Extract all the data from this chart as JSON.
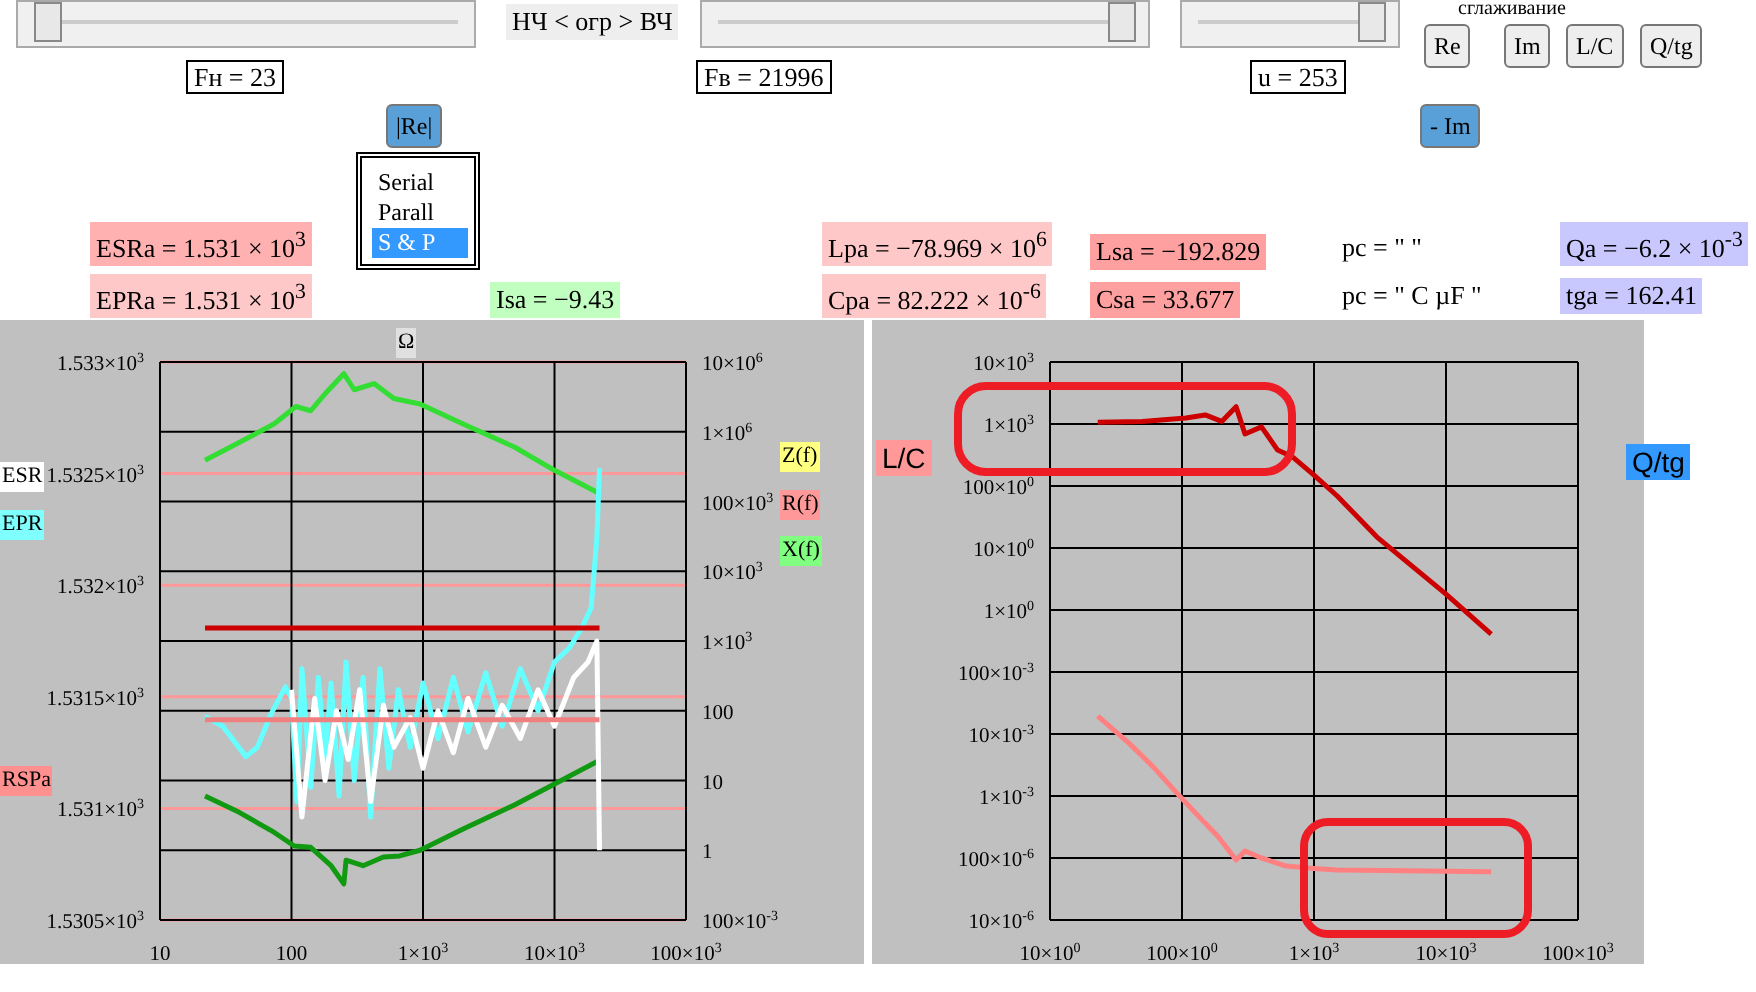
{
  "chart_data": [
    {
      "type": "line",
      "xlim": [
        10,
        100000
      ],
      "xticks": [
        10,
        100,
        {
          "value": 1000,
          "label": "1×10$^{3}$"
        },
        {
          "value": 10000,
          "label": "10×10$^{3}$"
        },
        {
          "value": 100000,
          "label": "100×10$^{3}$"
        }
      ],
      "y2lim": [
        1530.5,
        1533
      ],
      "y2ticks": [
        {
          "value": 1530.5,
          "label": "1.5305×10$^{3}$"
        },
        {
          "value": 1531,
          "label": "1.531×10$^{3}$"
        },
        {
          "value": 1531.5,
          "label": "1.5315×10$^{3}$"
        },
        {
          "value": 1532,
          "label": "1.532×10$^{3}$"
        },
        {
          "value": 1532.5,
          "label": "1.5325×10$^{3}$"
        },
        {
          "value": 1533,
          "label": "1.533×10$^{3}$"
        }
      ],
      "ylim": [
        0.1,
        10000000
      ],
      "yticks": [
        {
          "value": 0.1,
          "label": "100×10$^{-3}$"
        },
        1,
        10,
        100,
        {
          "value": 1000,
          "label": "1×10$^{3}$"
        },
        {
          "value": 10000,
          "label": "10×10$^{3}$"
        },
        {
          "value": 100000,
          "label": "100×10$^{3}$"
        },
        {
          "value": 1000000,
          "label": "1×10$^{6}$"
        },
        {
          "value": 10000000,
          "label": "10×10$^{6}$"
        }
      ],
      "log": "xy",
      "grid": true,
      "legend": false,
      "annotations": [
        "Ω",
        "ESR",
        "EPR",
        "RSPa",
        "Z(f)",
        "R(f)",
        "X(f)"
      ],
      "series": [
        {
          "color": "#33dd33",
          "x": [
            22,
            40,
            74,
            108,
            140,
            180,
            250,
            300,
            425,
            600,
            950,
            2000,
            5000,
            10000,
            21996
          ],
          "values": [
            390000,
            700000,
            1300000,
            2300000,
            2000000,
            3500000,
            6800000,
            4000000,
            4900000,
            3000000,
            2500000,
            1300000,
            600000,
            280000,
            130000
          ]
        },
        {
          "color": "#119911",
          "x": [
            22,
            40,
            74,
            105,
            140,
            200,
            250,
            260,
            350,
            500,
            665,
            950,
            2000,
            5000,
            10000,
            21996
          ],
          "values": [
            6,
            3.5,
            1.8,
            1.15,
            1.1,
            0.6,
            0.33,
            0.72,
            0.6,
            0.8,
            0.83,
            1,
            2,
            4.5,
            8.9,
            19.5
          ]
        },
        {
          "color": "#66ffff",
          "x": [
            22,
            30,
            45,
            55,
            70,
            90,
            100,
            110,
            120,
            140,
            160,
            180,
            200,
            230,
            260,
            300,
            350,
            400,
            470,
            550,
            650,
            800,
            1000,
            1300,
            1700,
            2200,
            3000,
            4000,
            5500,
            7500,
            10000,
            13000,
            16000,
            19000,
            21000,
            21996
          ],
          "values": [
            83,
            60,
            22,
            30,
            90,
            220,
            150,
            5,
            400,
            8,
            300,
            20,
            250,
            6,
            500,
            10,
            300,
            3,
            400,
            15,
            200,
            30,
            250,
            40,
            300,
            50,
            350,
            60,
            400,
            100,
            500,
            800,
            1500,
            3000,
            30000,
            300000
          ]
        },
        {
          "color": "#ffffff",
          "x": [
            100,
            120,
            150,
            180,
            220,
            270,
            330,
            400,
            500,
            600,
            800,
            1000,
            1300,
            1700,
            2200,
            3000,
            4000,
            5500,
            7500,
            10000,
            14000,
            18000,
            21000,
            21996
          ],
          "values": [
            200,
            3,
            150,
            10,
            100,
            20,
            200,
            5,
            120,
            30,
            80,
            15,
            100,
            25,
            150,
            30,
            120,
            40,
            200,
            60,
            300,
            500,
            1000,
            1
          ]
        },
        {
          "color": "#cc0000",
          "x": [
            22,
            21996
          ],
          "values": [
            1531,
            1531
          ]
        },
        {
          "color": "#f08080",
          "x": [
            22,
            21996
          ],
          "values": [
            74,
            74
          ]
        }
      ]
    },
    {
      "type": "line",
      "xlim": [
        10,
        100000
      ],
      "xticks": [
        {
          "value": 10,
          "label": "10×10$^{0}$"
        },
        {
          "value": 100,
          "label": "100×10$^{0}$"
        },
        {
          "value": 1000,
          "label": "1×10$^{3}$"
        },
        {
          "value": 10000,
          "label": "10×10$^{3}$"
        },
        {
          "value": 100000,
          "label": "100×10$^{3}$"
        }
      ],
      "ylim": [
        1e-05,
        10000
      ],
      "yticks": [
        {
          "value": 1e-05,
          "label": "10×10$^{-6}$"
        },
        {
          "value": 0.0001,
          "label": "100×10$^{-6}$"
        },
        {
          "value": 0.001,
          "label": "1×10$^{-3}$"
        },
        {
          "value": 0.01,
          "label": "10×10$^{-3}$"
        },
        {
          "value": 0.1,
          "label": "100×10$^{-3}$"
        },
        {
          "value": 1,
          "label": "1×10$^{0}$"
        },
        {
          "value": 10,
          "label": "10×10$^{0}$"
        },
        {
          "value": 100,
          "label": "100×10$^{0}$"
        },
        {
          "value": 1000,
          "label": "1×10$^{3}$"
        },
        {
          "value": 10000,
          "label": "10×10$^{3}$"
        }
      ],
      "log": "xy",
      "grid": true,
      "legend": false,
      "annotations": [
        "L/C",
        "Q/tg"
      ],
      "series": [
        {
          "color": "#cc0000",
          "x": [
            23,
            50,
            107,
            150,
            200,
            257,
            300,
            400,
            530,
            680,
            1000,
            1500,
            3000,
            10000,
            21996
          ],
          "values": [
            1070,
            1100,
            1250,
            1400,
            1100,
            1900,
            690,
            900,
            380,
            300,
            150,
            69,
            15,
            1.8,
            0.41
          ]
        },
        {
          "color": "#ff8080",
          "x": [
            23,
            40,
            60,
            93,
            130,
            188,
            257,
            300,
            400,
            616,
            1000,
            1500,
            5000,
            22000
          ],
          "values": [
            0.0195,
            0.007,
            0.003,
            0.00107,
            0.0005,
            0.00022,
            9.3e-05,
            0.00013,
            0.0001,
            7.4e-05,
            6.8e-05,
            6.4e-05,
            6.2e-05,
            6e-05
          ]
        }
      ]
    },
    {
      "type": "other",
      "annotations": [
        "НЧ < огр > ВЧ",
        "Fн = 23",
        "Fв = 21996",
        "u = 253",
        "сглаживание",
        "Re",
        "Im",
        "L/C",
        "Q/tg",
        "|Re|",
        "- Im",
        "Serial",
        "Parall",
        "S & P",
        "ESRa = 1.531 × 10$^{3}$",
        "EPRa = 1.531 × 10$^{3}$",
        "Isa = −9.43",
        "Lpa = −78.969 × 10$^{6}$",
        "Cpa = 82.222 × 10$^{-6}$",
        "Lsa = −192.829",
        "Csa = 33.677",
        "pc = \"             \"",
        "pc = \" C  µF \"",
        "Qa = −6.2 × 10$^{-3}$",
        "tga = 162.41"
      ]
    }
  ]
}
